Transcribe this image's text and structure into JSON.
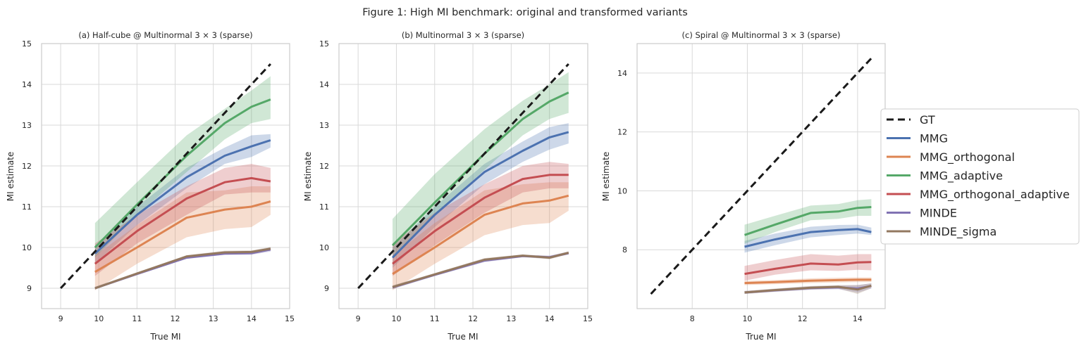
{
  "figure_title": "Figure 1: High MI benchmark: original and transformed variants",
  "series_styles": [
    {
      "name": "GT",
      "color": "#1a1a1a",
      "dashed": true
    },
    {
      "name": "MMG",
      "color": "#4c72b0"
    },
    {
      "name": "MMG_orthogonal",
      "color": "#dd8452"
    },
    {
      "name": "MMG_adaptive",
      "color": "#55a868"
    },
    {
      "name": "MMG_orthogonal_adaptive",
      "color": "#c44e52"
    },
    {
      "name": "MINDE",
      "color": "#8172b3"
    },
    {
      "name": "MINDE_sigma",
      "color": "#937860"
    }
  ],
  "chart_data": [
    {
      "type": "line",
      "title": "(a) Half-cube @ Multinormal 3 × 3 (sparse)",
      "xlabel": "True MI",
      "ylabel": "MI estimate",
      "xlim": [
        8.5,
        15
      ],
      "ylim": [
        8.5,
        15
      ],
      "xticks": [
        9,
        10,
        11,
        12,
        13,
        14,
        15
      ],
      "yticks": [
        9,
        10,
        11,
        12,
        13,
        14,
        15
      ],
      "grid": true,
      "series": [
        {
          "name": "GT",
          "x": [
            9,
            14.5
          ],
          "values": [
            9,
            14.5
          ]
        },
        {
          "name": "MMG",
          "x": [
            9.9,
            11,
            12.3,
            13.3,
            14,
            14.5
          ],
          "values": [
            9.85,
            10.8,
            11.72,
            12.25,
            12.48,
            12.63
          ],
          "lower": [
            9.6,
            10.55,
            11.45,
            12.05,
            12.22,
            12.45
          ],
          "upper": [
            10.05,
            11.0,
            11.95,
            12.45,
            12.75,
            12.78
          ]
        },
        {
          "name": "MMG_orthogonal",
          "x": [
            9.9,
            11,
            12.3,
            13.3,
            14,
            14.5
          ],
          "values": [
            9.4,
            10.0,
            10.73,
            10.93,
            11.0,
            11.13
          ],
          "lower": [
            8.95,
            9.6,
            10.25,
            10.45,
            10.5,
            10.8
          ],
          "upper": [
            9.8,
            10.55,
            11.35,
            11.4,
            11.5,
            11.5
          ]
        },
        {
          "name": "MMG_adaptive",
          "x": [
            9.9,
            11,
            12.3,
            13.3,
            14,
            14.5
          ],
          "values": [
            10.0,
            11.05,
            12.25,
            13.05,
            13.45,
            13.63
          ],
          "lower": [
            9.75,
            10.8,
            11.85,
            12.65,
            13.05,
            13.15
          ],
          "upper": [
            10.6,
            11.6,
            12.75,
            13.4,
            13.85,
            14.2
          ]
        },
        {
          "name": "MMG_orthogonal_adaptive",
          "x": [
            9.9,
            11,
            12.3,
            13.3,
            14,
            14.5
          ],
          "values": [
            9.6,
            10.4,
            11.2,
            11.6,
            11.7,
            11.62
          ],
          "lower": [
            9.3,
            10.1,
            10.8,
            11.3,
            11.35,
            11.35
          ],
          "upper": [
            10.1,
            10.8,
            11.5,
            11.95,
            12.05,
            11.95
          ]
        },
        {
          "name": "MINDE",
          "x": [
            9.9,
            11,
            12.3,
            13.3,
            14,
            14.5
          ],
          "values": [
            9.0,
            9.35,
            9.75,
            9.85,
            9.86,
            9.95
          ],
          "lower": [
            8.97,
            9.32,
            9.72,
            9.82,
            9.82,
            9.9
          ],
          "upper": [
            9.03,
            9.38,
            9.78,
            9.88,
            9.9,
            10.0
          ]
        },
        {
          "name": "MINDE_sigma",
          "x": [
            9.9,
            11,
            12.3,
            13.3,
            14,
            14.5
          ],
          "values": [
            9.0,
            9.36,
            9.78,
            9.88,
            9.89,
            9.97
          ],
          "lower": [
            8.97,
            9.33,
            9.75,
            9.84,
            9.85,
            9.93
          ],
          "upper": [
            9.04,
            9.39,
            9.81,
            9.92,
            9.93,
            10.01
          ]
        }
      ]
    },
    {
      "type": "line",
      "title": "(b) Multinormal 3 × 3 (sparse)",
      "xlabel": "True MI",
      "ylabel": "MI estimate",
      "xlim": [
        8.5,
        15
      ],
      "ylim": [
        8.5,
        15
      ],
      "xticks": [
        9,
        10,
        11,
        12,
        13,
        14,
        15
      ],
      "yticks": [
        9,
        10,
        11,
        12,
        13,
        14,
        15
      ],
      "grid": true,
      "series": [
        {
          "name": "GT",
          "x": [
            9,
            14.5
          ],
          "values": [
            9,
            14.5
          ]
        },
        {
          "name": "MMG",
          "x": [
            9.9,
            11,
            12.3,
            13.3,
            14,
            14.5
          ],
          "values": [
            9.75,
            10.8,
            11.85,
            12.37,
            12.7,
            12.83
          ],
          "lower": [
            9.5,
            10.5,
            11.55,
            12.1,
            12.4,
            12.55
          ],
          "upper": [
            10.0,
            11.0,
            12.05,
            12.6,
            12.95,
            13.05
          ]
        },
        {
          "name": "MMG_orthogonal",
          "x": [
            9.9,
            11,
            12.3,
            13.3,
            14,
            14.5
          ],
          "values": [
            9.35,
            10.0,
            10.8,
            11.08,
            11.15,
            11.27
          ],
          "lower": [
            8.95,
            9.6,
            10.3,
            10.55,
            10.6,
            10.9
          ],
          "upper": [
            9.8,
            10.6,
            11.4,
            11.55,
            11.6,
            11.6
          ]
        },
        {
          "name": "MMG_adaptive",
          "x": [
            9.9,
            11,
            12.3,
            13.3,
            14,
            14.5
          ],
          "values": [
            10.05,
            11.1,
            12.3,
            13.15,
            13.58,
            13.8
          ],
          "lower": [
            9.75,
            10.8,
            11.9,
            12.75,
            13.15,
            13.3
          ],
          "upper": [
            10.7,
            11.8,
            12.9,
            13.6,
            14.0,
            14.3
          ]
        },
        {
          "name": "MMG_orthogonal_adaptive",
          "x": [
            9.9,
            11,
            12.3,
            13.3,
            14,
            14.5
          ],
          "values": [
            9.6,
            10.4,
            11.22,
            11.68,
            11.78,
            11.78
          ],
          "lower": [
            9.3,
            10.05,
            10.85,
            11.35,
            11.45,
            11.45
          ],
          "upper": [
            10.1,
            10.85,
            11.55,
            12.0,
            12.1,
            12.05
          ]
        },
        {
          "name": "MINDE",
          "x": [
            9.9,
            11,
            12.3,
            13.3,
            14,
            14.5
          ],
          "values": [
            9.02,
            9.33,
            9.68,
            9.79,
            9.76,
            9.86
          ],
          "lower": [
            8.98,
            9.3,
            9.64,
            9.76,
            9.72,
            9.83
          ],
          "upper": [
            9.06,
            9.36,
            9.72,
            9.82,
            9.8,
            9.9
          ]
        },
        {
          "name": "MINDE_sigma",
          "x": [
            9.9,
            11,
            12.3,
            13.3,
            14,
            14.5
          ],
          "values": [
            9.03,
            9.34,
            9.7,
            9.8,
            9.75,
            9.87
          ],
          "lower": [
            8.99,
            9.31,
            9.66,
            9.77,
            9.71,
            9.84
          ],
          "upper": [
            9.07,
            9.37,
            9.74,
            9.83,
            9.79,
            9.9
          ]
        }
      ]
    },
    {
      "type": "line",
      "title": "(c) Spiral @ Multinormal 3 × 3 (sparse)",
      "xlabel": "True MI",
      "ylabel": "MI estimate",
      "xlim": [
        6.0,
        15.0
      ],
      "ylim": [
        6.0,
        15.0
      ],
      "xticks": [
        8,
        10,
        12,
        14
      ],
      "yticks": [
        8,
        10,
        12,
        14
      ],
      "grid": true,
      "series": [
        {
          "name": "GT",
          "x": [
            6.5,
            14.5
          ],
          "values": [
            6.5,
            14.5
          ]
        },
        {
          "name": "MMG",
          "x": [
            9.9,
            11,
            12.3,
            13.3,
            14,
            14.5
          ],
          "values": [
            8.1,
            8.35,
            8.6,
            8.67,
            8.7,
            8.6
          ],
          "lower": [
            7.9,
            8.15,
            8.42,
            8.5,
            8.55,
            8.5
          ],
          "upper": [
            8.3,
            8.55,
            8.78,
            8.84,
            8.85,
            8.75
          ]
        },
        {
          "name": "MMG_orthogonal",
          "x": [
            9.9,
            11,
            12.3,
            13.3,
            14,
            14.5
          ],
          "values": [
            6.87,
            6.9,
            6.95,
            6.97,
            6.98,
            6.98
          ],
          "lower": [
            6.8,
            6.83,
            6.87,
            6.89,
            6.9,
            6.9
          ],
          "upper": [
            6.94,
            6.97,
            7.03,
            7.05,
            7.06,
            7.06
          ]
        },
        {
          "name": "MMG_adaptive",
          "x": [
            9.9,
            11,
            12.3,
            13.3,
            14,
            14.5
          ],
          "values": [
            8.5,
            8.85,
            9.25,
            9.3,
            9.42,
            9.45
          ],
          "lower": [
            8.2,
            8.6,
            9.0,
            9.05,
            9.15,
            9.15
          ],
          "upper": [
            8.85,
            9.15,
            9.5,
            9.55,
            9.68,
            9.72
          ]
        },
        {
          "name": "MMG_orthogonal_adaptive",
          "x": [
            9.9,
            11,
            12.3,
            13.3,
            14,
            14.5
          ],
          "values": [
            7.18,
            7.35,
            7.53,
            7.5,
            7.57,
            7.58
          ],
          "lower": [
            6.95,
            7.15,
            7.3,
            7.28,
            7.32,
            7.3
          ],
          "upper": [
            7.45,
            7.65,
            7.85,
            7.8,
            7.85,
            7.85
          ]
        },
        {
          "name": "MINDE",
          "x": [
            9.9,
            11,
            12.3,
            13.3,
            14,
            14.5
          ],
          "values": [
            6.55,
            6.62,
            6.7,
            6.72,
            6.68,
            6.77
          ],
          "lower": [
            6.5,
            6.57,
            6.64,
            6.66,
            6.55,
            6.68
          ],
          "upper": [
            6.6,
            6.67,
            6.76,
            6.78,
            6.8,
            6.86
          ]
        },
        {
          "name": "MINDE_sigma",
          "x": [
            9.9,
            11,
            12.3,
            13.3,
            14,
            14.5
          ],
          "values": [
            6.55,
            6.63,
            6.71,
            6.74,
            6.65,
            6.78
          ],
          "lower": [
            6.5,
            6.58,
            6.65,
            6.68,
            6.5,
            6.7
          ],
          "upper": [
            6.6,
            6.68,
            6.77,
            6.8,
            6.8,
            6.86
          ]
        }
      ]
    }
  ]
}
